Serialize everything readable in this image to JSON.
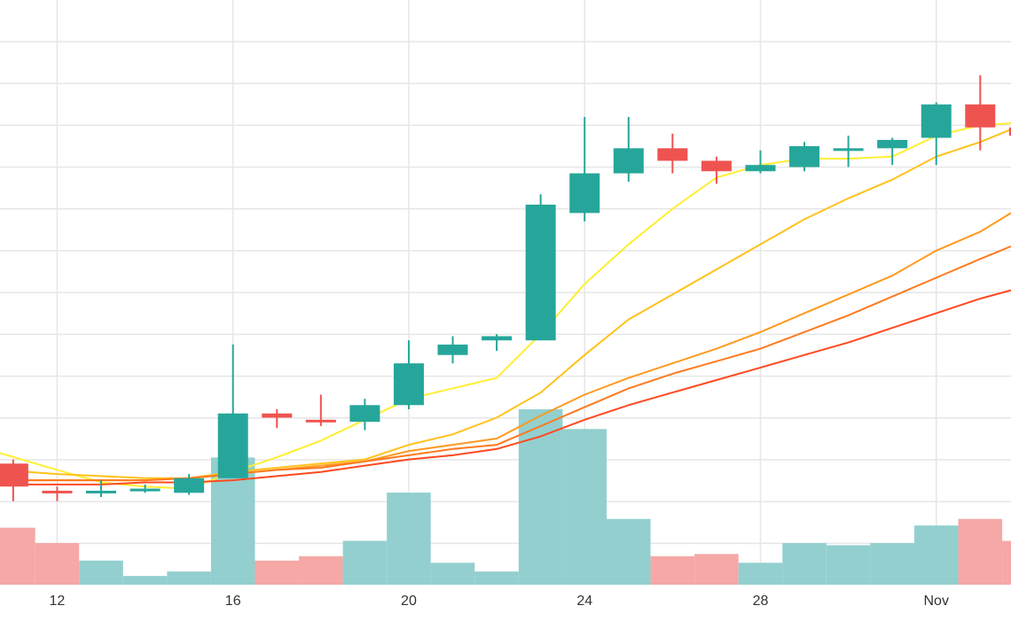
{
  "chart_data": {
    "type": "candlestick",
    "x_tick_labels": [
      {
        "day": 12,
        "label": "12"
      },
      {
        "day": 16,
        "label": "16"
      },
      {
        "day": 20,
        "label": "20"
      },
      {
        "day": 24,
        "label": "24"
      },
      {
        "day": 28,
        "label": "28"
      },
      {
        "day": 32,
        "label": "Nov"
      }
    ],
    "xlim": [
      10.7,
      33.7
    ],
    "ylim": [
      0,
      14
    ],
    "volume_ylim": [
      0,
      10
    ],
    "grid": true,
    "colors": {
      "up": "#26a69a",
      "down": "#ef5350",
      "volume_up": "#93cfcf",
      "volume_down": "#f5a8a6",
      "grid": "#e6e6e6",
      "ma": [
        "#ffee33",
        "#ffc21a",
        "#ff9a1f",
        "#ff7a1f",
        "#ff4a1f"
      ]
    },
    "candles": [
      {
        "day": 11,
        "open": 2.9,
        "high": 3.0,
        "low": 2.0,
        "close": 2.35,
        "volume": 1.3
      },
      {
        "day": 12,
        "open": 2.25,
        "high": 2.35,
        "low": 2.0,
        "close": 2.2,
        "volume": 0.95
      },
      {
        "day": 13,
        "open": 2.2,
        "high": 2.5,
        "low": 2.1,
        "close": 2.25,
        "volume": 0.55
      },
      {
        "day": 14,
        "open": 2.3,
        "high": 2.4,
        "low": 2.2,
        "close": 2.3,
        "volume": 0.2
      },
      {
        "day": 15,
        "open": 2.2,
        "high": 2.65,
        "low": 2.15,
        "close": 2.55,
        "volume": 0.3
      },
      {
        "day": 16,
        "open": 2.55,
        "high": 5.75,
        "low": 2.55,
        "close": 4.1,
        "volume": 2.9
      },
      {
        "day": 17,
        "open": 4.1,
        "high": 4.2,
        "low": 3.75,
        "close": 4.0,
        "volume": 0.55
      },
      {
        "day": 18,
        "open": 3.95,
        "high": 4.55,
        "low": 3.8,
        "close": 3.9,
        "volume": 0.65
      },
      {
        "day": 19,
        "open": 3.9,
        "high": 4.45,
        "low": 3.7,
        "close": 4.3,
        "volume": 1.0
      },
      {
        "day": 20,
        "open": 4.3,
        "high": 5.85,
        "low": 4.2,
        "close": 5.3,
        "volume": 2.1
      },
      {
        "day": 21,
        "open": 5.5,
        "high": 5.95,
        "low": 5.3,
        "close": 5.75,
        "volume": 0.5
      },
      {
        "day": 22,
        "open": 5.85,
        "high": 6.0,
        "low": 5.6,
        "close": 5.95,
        "volume": 0.3
      },
      {
        "day": 23,
        "open": 5.85,
        "high": 9.35,
        "low": 5.85,
        "close": 9.1,
        "volume": 4.0
      },
      {
        "day": 24,
        "open": 8.9,
        "high": 11.2,
        "low": 8.7,
        "close": 9.85,
        "volume": 3.55
      },
      {
        "day": 25,
        "open": 9.85,
        "high": 11.2,
        "low": 9.65,
        "close": 10.45,
        "volume": 1.5
      },
      {
        "day": 26,
        "open": 10.45,
        "high": 10.8,
        "low": 9.85,
        "close": 10.15,
        "volume": 0.65
      },
      {
        "day": 27,
        "open": 10.15,
        "high": 10.25,
        "low": 9.6,
        "close": 9.9,
        "volume": 0.7
      },
      {
        "day": 28,
        "open": 9.9,
        "high": 10.4,
        "low": 9.85,
        "close": 10.05,
        "volume": 0.5
      },
      {
        "day": 29,
        "open": 10.0,
        "high": 10.6,
        "low": 9.9,
        "close": 10.5,
        "volume": 0.95
      },
      {
        "day": 30,
        "open": 10.45,
        "high": 10.75,
        "low": 10.0,
        "close": 10.45,
        "volume": 0.9
      },
      {
        "day": 31,
        "open": 10.45,
        "high": 10.7,
        "low": 10.05,
        "close": 10.65,
        "volume": 0.95
      },
      {
        "day": 32,
        "open": 10.7,
        "high": 11.55,
        "low": 10.05,
        "close": 11.5,
        "volume": 1.35
      },
      {
        "day": 33,
        "open": 11.5,
        "high": 12.2,
        "low": 10.4,
        "close": 10.95,
        "volume": 1.5
      },
      {
        "day": 34,
        "open": 10.95,
        "high": 10.95,
        "low": 10.0,
        "close": 10.75,
        "volume": 1.0
      }
    ],
    "moving_averages": [
      {
        "values": [
          [
            10.7,
            3.15
          ],
          [
            12,
            2.75
          ],
          [
            13,
            2.45
          ],
          [
            14,
            2.35
          ],
          [
            15,
            2.3
          ],
          [
            16,
            2.7
          ],
          [
            17,
            3.05
          ],
          [
            18,
            3.45
          ],
          [
            19,
            3.95
          ],
          [
            20,
            4.45
          ],
          [
            21,
            4.7
          ],
          [
            22,
            4.95
          ],
          [
            23,
            6.0
          ],
          [
            24,
            7.2
          ],
          [
            25,
            8.15
          ],
          [
            26,
            9.0
          ],
          [
            27,
            9.75
          ],
          [
            28,
            10.05
          ],
          [
            29,
            10.2
          ],
          [
            30,
            10.2
          ],
          [
            31,
            10.25
          ],
          [
            32,
            10.75
          ],
          [
            33,
            11.0
          ],
          [
            33.7,
            11.05
          ]
        ]
      },
      {
        "values": [
          [
            10.7,
            2.75
          ],
          [
            12,
            2.65
          ],
          [
            13,
            2.6
          ],
          [
            14,
            2.55
          ],
          [
            15,
            2.55
          ],
          [
            16,
            2.7
          ],
          [
            17,
            2.8
          ],
          [
            18,
            2.9
          ],
          [
            19,
            3.0
          ],
          [
            20,
            3.35
          ],
          [
            21,
            3.6
          ],
          [
            22,
            4.0
          ],
          [
            23,
            4.6
          ],
          [
            24,
            5.5
          ],
          [
            25,
            6.35
          ],
          [
            26,
            6.95
          ],
          [
            27,
            7.55
          ],
          [
            28,
            8.15
          ],
          [
            29,
            8.75
          ],
          [
            30,
            9.25
          ],
          [
            31,
            9.7
          ],
          [
            32,
            10.25
          ],
          [
            33,
            10.6
          ],
          [
            33.7,
            10.9
          ]
        ]
      },
      {
        "values": [
          [
            10.7,
            2.5
          ],
          [
            12,
            2.5
          ],
          [
            13,
            2.5
          ],
          [
            14,
            2.5
          ],
          [
            15,
            2.55
          ],
          [
            16,
            2.65
          ],
          [
            17,
            2.75
          ],
          [
            18,
            2.85
          ],
          [
            19,
            2.95
          ],
          [
            20,
            3.2
          ],
          [
            21,
            3.35
          ],
          [
            22,
            3.5
          ],
          [
            23,
            4.05
          ],
          [
            24,
            4.55
          ],
          [
            25,
            4.95
          ],
          [
            26,
            5.3
          ],
          [
            27,
            5.65
          ],
          [
            28,
            6.05
          ],
          [
            29,
            6.5
          ],
          [
            30,
            6.95
          ],
          [
            31,
            7.4
          ],
          [
            32,
            8.0
          ],
          [
            33,
            8.45
          ],
          [
            33.7,
            8.9
          ]
        ]
      },
      {
        "values": [
          [
            10.7,
            2.5
          ],
          [
            12,
            2.5
          ],
          [
            13,
            2.5
          ],
          [
            14,
            2.5
          ],
          [
            15,
            2.55
          ],
          [
            16,
            2.65
          ],
          [
            17,
            2.75
          ],
          [
            18,
            2.8
          ],
          [
            19,
            2.95
          ],
          [
            20,
            3.1
          ],
          [
            21,
            3.25
          ],
          [
            22,
            3.35
          ],
          [
            23,
            3.8
          ],
          [
            24,
            4.25
          ],
          [
            25,
            4.7
          ],
          [
            26,
            5.05
          ],
          [
            27,
            5.35
          ],
          [
            28,
            5.65
          ],
          [
            29,
            6.05
          ],
          [
            30,
            6.45
          ],
          [
            31,
            6.9
          ],
          [
            32,
            7.35
          ],
          [
            33,
            7.8
          ],
          [
            33.7,
            8.1
          ]
        ]
      },
      {
        "values": [
          [
            10.7,
            2.4
          ],
          [
            12,
            2.4
          ],
          [
            13,
            2.4
          ],
          [
            14,
            2.45
          ],
          [
            15,
            2.45
          ],
          [
            16,
            2.5
          ],
          [
            17,
            2.6
          ],
          [
            18,
            2.7
          ],
          [
            19,
            2.85
          ],
          [
            20,
            3.0
          ],
          [
            21,
            3.1
          ],
          [
            22,
            3.25
          ],
          [
            23,
            3.55
          ],
          [
            24,
            3.95
          ],
          [
            25,
            4.3
          ],
          [
            26,
            4.6
          ],
          [
            27,
            4.9
          ],
          [
            28,
            5.2
          ],
          [
            29,
            5.5
          ],
          [
            30,
            5.8
          ],
          [
            31,
            6.15
          ],
          [
            32,
            6.5
          ],
          [
            33,
            6.85
          ],
          [
            33.7,
            7.05
          ]
        ]
      }
    ]
  }
}
